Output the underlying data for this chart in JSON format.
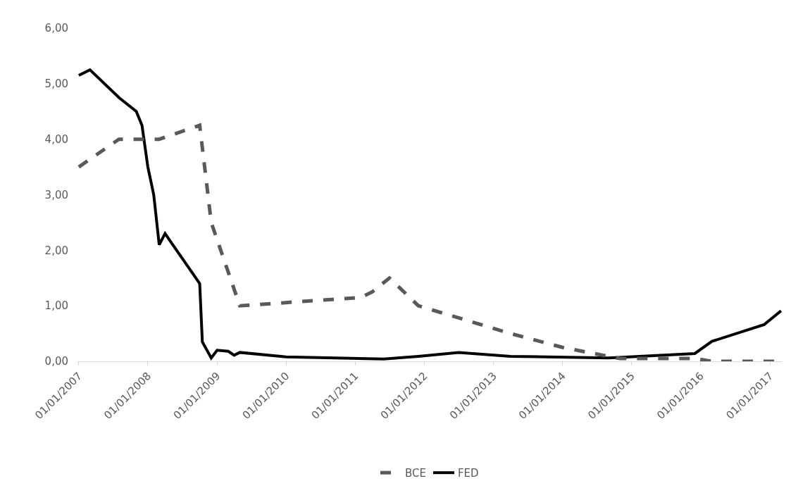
{
  "chart_data": {
    "type": "line",
    "x": [
      "2007-01",
      "2007-03",
      "2007-08",
      "2007-11",
      "2007-12",
      "2008-01",
      "2008-02",
      "2008-03",
      "2008-04",
      "2008-10",
      "2008-10-15",
      "2008-12",
      "2009-01",
      "2009-03",
      "2009-04",
      "2009-05",
      "2010-01",
      "2011-06",
      "2011-12",
      "2012-07",
      "2013-04",
      "2014-09",
      "2015-12",
      "2016-03",
      "2016-12",
      "2017-03"
    ],
    "series": [
      {
        "name": "FED",
        "color": "#000000",
        "line_style": "solid",
        "values": [
          5.15,
          5.25,
          4.75,
          4.5,
          4.25,
          3.5,
          3.0,
          2.1,
          2.3,
          1.4,
          0.35,
          0.06,
          0.2,
          0.18,
          0.11,
          0.16,
          0.08,
          0.04,
          0.09,
          0.16,
          0.09,
          0.06,
          0.14,
          0.36,
          0.66,
          0.91
        ]
      },
      {
        "name": "BCE",
        "color": "#595959",
        "line_style": "dashed",
        "x": [
          "2007-01",
          "2007-08",
          "2008-03",
          "2008-10",
          "2008-12",
          "2009-05",
          "2011-02",
          "2011-04",
          "2011-07",
          "2011-12",
          "2012-08",
          "2013-04",
          "2014-01",
          "2014-06",
          "2014-11",
          "2015-12",
          "2016-03",
          "2017-03"
        ],
        "values": [
          3.5,
          4.0,
          4.0,
          4.25,
          2.5,
          1.0,
          1.15,
          1.25,
          1.5,
          1.0,
          0.75,
          0.5,
          0.25,
          0.15,
          0.05,
          0.05,
          0.0,
          0.0
        ]
      }
    ],
    "xlim": [
      "2006-12-25",
      "2017-03-05"
    ],
    "xticks": [
      {
        "value": "2007-01-01",
        "label": "01/01/2007"
      },
      {
        "value": "2008-01-01",
        "label": "01/01/2008"
      },
      {
        "value": "2009-01-01",
        "label": "01/01/2009"
      },
      {
        "value": "2010-01-01",
        "label": "01/01/2010"
      },
      {
        "value": "2011-01-01",
        "label": "01/01/2011"
      },
      {
        "value": "2012-01-01",
        "label": "01/01/2012"
      },
      {
        "value": "2013-01-01",
        "label": "01/01/2013"
      },
      {
        "value": "2014-01-01",
        "label": "01/01/2014"
      },
      {
        "value": "2015-01-01",
        "label": "01/01/2015"
      },
      {
        "value": "2016-01-01",
        "label": "01/01/2016"
      },
      {
        "value": "2017-01-01",
        "label": "01/01/2017"
      }
    ],
    "ylim": [
      0,
      6
    ],
    "yticks": [
      {
        "value": 0,
        "label": "0,00"
      },
      {
        "value": 1,
        "label": "1,00"
      },
      {
        "value": 2,
        "label": "2,00"
      },
      {
        "value": 3,
        "label": "3,00"
      },
      {
        "value": 4,
        "label": "4,00"
      },
      {
        "value": 5,
        "label": "5,00"
      },
      {
        "value": 6,
        "label": "6,00"
      }
    ],
    "legend": "bottom",
    "marker": "none"
  }
}
